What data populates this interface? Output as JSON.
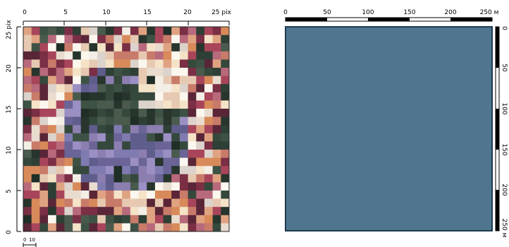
{
  "left_panel": {
    "x_axis_ticks": [
      "0",
      "5",
      "10",
      "15",
      "20",
      "25 pix"
    ],
    "y_axis_ticks": [
      "0",
      "5",
      "10",
      "15",
      "20",
      "25 pix"
    ],
    "scale_bar_labels": [
      "0",
      "10"
    ]
  },
  "right_panel": {
    "fill_color": "#50758f",
    "x_axis_ticks": [
      "0",
      "50",
      "100",
      "150",
      "200",
      "250 м"
    ],
    "y_axis_ticks": [
      "0",
      "50",
      "100",
      "150",
      "200",
      "250 м"
    ]
  }
}
